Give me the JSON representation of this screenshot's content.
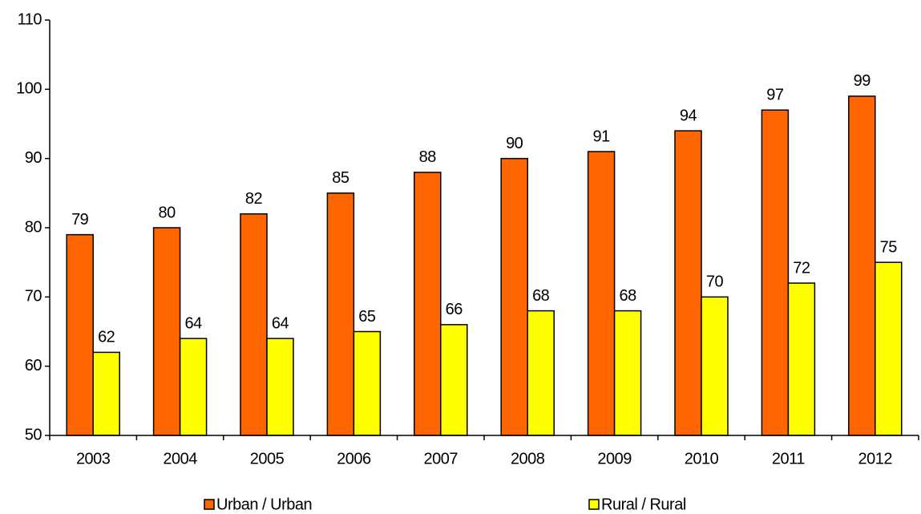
{
  "chart_data": {
    "type": "bar",
    "categories": [
      "2003",
      "2004",
      "2005",
      "2006",
      "2007",
      "2008",
      "2009",
      "2010",
      "2011",
      "2012"
    ],
    "series": [
      {
        "name": "Urban / Urban",
        "color": "#ff6600",
        "values": [
          79,
          80,
          82,
          85,
          88,
          90,
          91,
          94,
          97,
          99
        ]
      },
      {
        "name": "Rural / Rural",
        "color": "#ffff00",
        "values": [
          62,
          64,
          64,
          65,
          66,
          68,
          68,
          70,
          72,
          75
        ]
      }
    ],
    "ylim": [
      50,
      110
    ],
    "yticks": [
      50,
      60,
      70,
      80,
      90,
      100,
      110
    ],
    "grid": false,
    "legend": "bottom"
  }
}
